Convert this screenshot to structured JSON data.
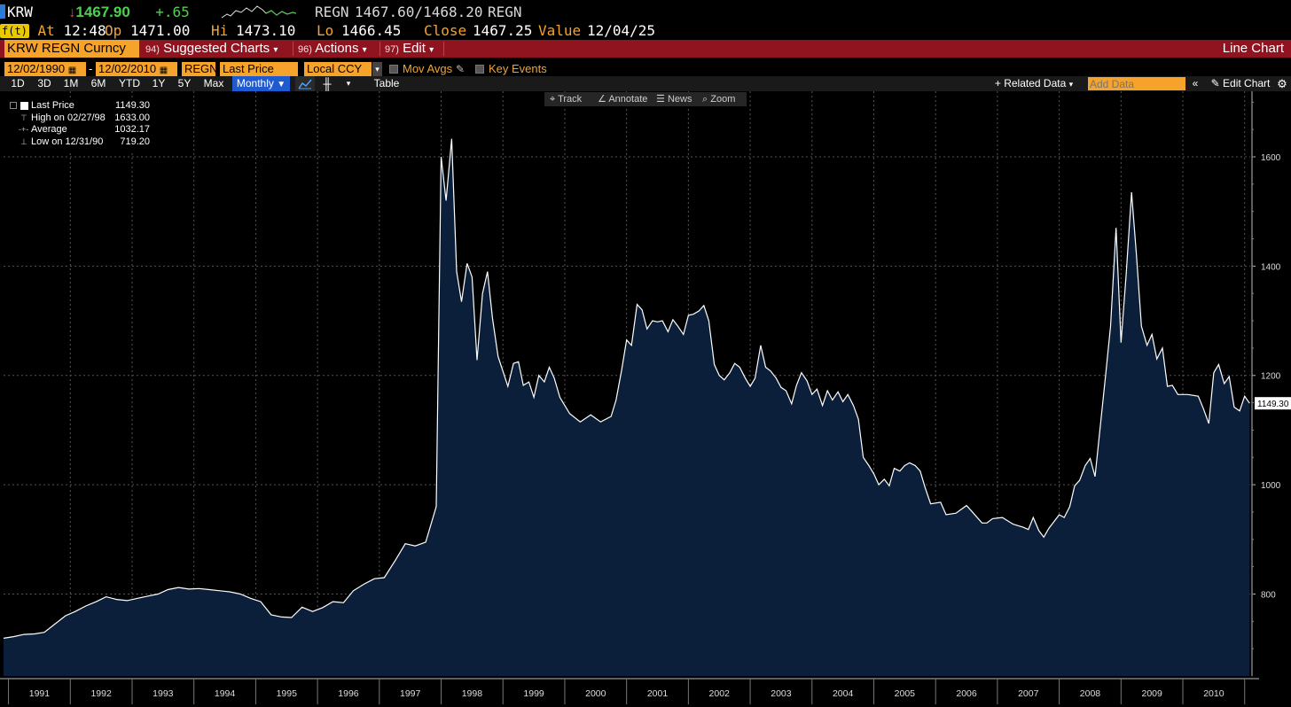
{
  "quote": {
    "ticker": "KRW",
    "price": "1467.90",
    "arrow": "↓",
    "change": "+.65",
    "symbol": "REGN",
    "bid_ask": "1467.60/1468.20",
    "symbol2": "REGN",
    "fkey": "f(t)",
    "at_label": "At",
    "at_time": "12:48",
    "op_label": "Op",
    "op": "1471.00",
    "hi_label": "Hi",
    "hi": "1473.10",
    "lo_label": "Lo",
    "lo": "1466.45",
    "close_label": "Close",
    "close": "1467.25",
    "value_label": "Value",
    "value_date": "12/04/25"
  },
  "menubar": {
    "security": "KRW REGN Curncy",
    "items": [
      {
        "num": "94)",
        "label": "Suggested Charts",
        "caret": "▾"
      },
      {
        "num": "96)",
        "label": "Actions",
        "caret": "▾"
      },
      {
        "num": "97)",
        "label": "Edit",
        "caret": "▾"
      }
    ],
    "right_label": "Line Chart"
  },
  "controls": {
    "start_date": "12/02/1990",
    "dash": "-",
    "end_date": "12/02/2010",
    "source": "REGN",
    "field": "Last Price",
    "currency": "Local CCY",
    "mov_avgs": "Mov Avgs",
    "key_events": "Key Events"
  },
  "periods": {
    "buttons": [
      "1D",
      "3D",
      "1M",
      "6M",
      "YTD",
      "1Y",
      "5Y",
      "Max"
    ],
    "frequency": "Monthly",
    "table": "Table",
    "related_data": "+ Related Data",
    "add_data_placeholder": "Add Data",
    "edit_chart": "Edit Chart"
  },
  "tools": {
    "track": "Track",
    "annotate": "Annotate",
    "news": "News",
    "zoom": "Zoom"
  },
  "legend": [
    {
      "label": "Last Price",
      "value": "1149.30"
    },
    {
      "label": "High on 02/27/98",
      "value": "1633.00"
    },
    {
      "label": "Average",
      "value": "1032.17"
    },
    {
      "label": "Low on 12/31/90",
      "value": "719.20"
    }
  ],
  "colors": {
    "area_fill": "#0b1f3a",
    "line": "#ffffff",
    "accent_orange": "#f6a32c",
    "menu_red": "#8f1420",
    "up_green": "#4ed04e",
    "down_red": "#ff3b3b"
  },
  "chart_data": {
    "type": "area",
    "title": "",
    "xlabel": "",
    "ylabel": "",
    "ylim": [
      650,
      1720
    ],
    "yticks": [
      800,
      1000,
      1200,
      1400,
      1600
    ],
    "x_ticks": [
      "1991",
      "1992",
      "1993",
      "1994",
      "1995",
      "1996",
      "1997",
      "1998",
      "1999",
      "2000",
      "2001",
      "2002",
      "2003",
      "2004",
      "2005",
      "2006",
      "2007",
      "2008",
      "2009",
      "2010"
    ],
    "last_value_label": "1149.30",
    "grid": true,
    "x_start": 1990.92,
    "x_end": 2010.92,
    "series": [
      {
        "name": "Last Price",
        "points": [
          [
            1990.92,
            719
          ],
          [
            1991.08,
            722
          ],
          [
            1991.25,
            726
          ],
          [
            1991.42,
            727
          ],
          [
            1991.58,
            730
          ],
          [
            1991.75,
            745
          ],
          [
            1991.92,
            760
          ],
          [
            1992.08,
            768
          ],
          [
            1992.25,
            778
          ],
          [
            1992.42,
            786
          ],
          [
            1992.58,
            795
          ],
          [
            1992.75,
            790
          ],
          [
            1992.92,
            788
          ],
          [
            1993.08,
            792
          ],
          [
            1993.25,
            796
          ],
          [
            1993.42,
            800
          ],
          [
            1993.58,
            808
          ],
          [
            1993.75,
            812
          ],
          [
            1993.92,
            809
          ],
          [
            1994.08,
            810
          ],
          [
            1994.25,
            808
          ],
          [
            1994.42,
            806
          ],
          [
            1994.58,
            804
          ],
          [
            1994.75,
            800
          ],
          [
            1994.92,
            792
          ],
          [
            1995.08,
            786
          ],
          [
            1995.25,
            762
          ],
          [
            1995.42,
            758
          ],
          [
            1995.58,
            757
          ],
          [
            1995.75,
            776
          ],
          [
            1995.92,
            768
          ],
          [
            1996.08,
            775
          ],
          [
            1996.25,
            786
          ],
          [
            1996.42,
            784
          ],
          [
            1996.58,
            806
          ],
          [
            1996.75,
            818
          ],
          [
            1996.92,
            828
          ],
          [
            1997.08,
            830
          ],
          [
            1997.25,
            860
          ],
          [
            1997.42,
            892
          ],
          [
            1997.58,
            888
          ],
          [
            1997.75,
            895
          ],
          [
            1997.92,
            960
          ],
          [
            1998.0,
            1600
          ],
          [
            1998.08,
            1520
          ],
          [
            1998.17,
            1633
          ],
          [
            1998.25,
            1390
          ],
          [
            1998.33,
            1335
          ],
          [
            1998.42,
            1405
          ],
          [
            1998.5,
            1380
          ],
          [
            1998.58,
            1228
          ],
          [
            1998.67,
            1350
          ],
          [
            1998.75,
            1390
          ],
          [
            1998.83,
            1305
          ],
          [
            1998.92,
            1235
          ],
          [
            1999.08,
            1180
          ],
          [
            1999.17,
            1222
          ],
          [
            1999.25,
            1225
          ],
          [
            1999.33,
            1182
          ],
          [
            1999.42,
            1188
          ],
          [
            1999.5,
            1160
          ],
          [
            1999.58,
            1200
          ],
          [
            1999.67,
            1188
          ],
          [
            1999.75,
            1215
          ],
          [
            1999.83,
            1195
          ],
          [
            1999.92,
            1160
          ],
          [
            2000.08,
            1130
          ],
          [
            2000.25,
            1115
          ],
          [
            2000.42,
            1128
          ],
          [
            2000.58,
            1115
          ],
          [
            2000.75,
            1125
          ],
          [
            2000.83,
            1155
          ],
          [
            2000.92,
            1210
          ],
          [
            2001.0,
            1265
          ],
          [
            2001.08,
            1255
          ],
          [
            2001.17,
            1330
          ],
          [
            2001.25,
            1320
          ],
          [
            2001.33,
            1285
          ],
          [
            2001.42,
            1300
          ],
          [
            2001.5,
            1298
          ],
          [
            2001.58,
            1300
          ],
          [
            2001.67,
            1280
          ],
          [
            2001.75,
            1302
          ],
          [
            2001.83,
            1290
          ],
          [
            2001.92,
            1275
          ],
          [
            2002.0,
            1310
          ],
          [
            2002.08,
            1312
          ],
          [
            2002.17,
            1318
          ],
          [
            2002.25,
            1328
          ],
          [
            2002.33,
            1300
          ],
          [
            2002.42,
            1220
          ],
          [
            2002.5,
            1200
          ],
          [
            2002.58,
            1192
          ],
          [
            2002.67,
            1205
          ],
          [
            2002.75,
            1222
          ],
          [
            2002.83,
            1215
          ],
          [
            2002.92,
            1195
          ],
          [
            2003.0,
            1180
          ],
          [
            2003.08,
            1195
          ],
          [
            2003.17,
            1255
          ],
          [
            2003.25,
            1215
          ],
          [
            2003.33,
            1208
          ],
          [
            2003.42,
            1195
          ],
          [
            2003.5,
            1178
          ],
          [
            2003.58,
            1172
          ],
          [
            2003.67,
            1148
          ],
          [
            2003.75,
            1182
          ],
          [
            2003.83,
            1205
          ],
          [
            2003.92,
            1190
          ],
          [
            2004.0,
            1165
          ],
          [
            2004.08,
            1175
          ],
          [
            2004.17,
            1145
          ],
          [
            2004.25,
            1172
          ],
          [
            2004.33,
            1155
          ],
          [
            2004.42,
            1170
          ],
          [
            2004.5,
            1152
          ],
          [
            2004.58,
            1165
          ],
          [
            2004.67,
            1145
          ],
          [
            2004.75,
            1120
          ],
          [
            2004.83,
            1050
          ],
          [
            2004.92,
            1035
          ],
          [
            2005.0,
            1020
          ],
          [
            2005.08,
            1000
          ],
          [
            2005.17,
            1010
          ],
          [
            2005.25,
            998
          ],
          [
            2005.33,
            1030
          ],
          [
            2005.42,
            1025
          ],
          [
            2005.5,
            1035
          ],
          [
            2005.58,
            1040
          ],
          [
            2005.67,
            1035
          ],
          [
            2005.75,
            1025
          ],
          [
            2005.83,
            995
          ],
          [
            2005.92,
            965
          ],
          [
            2006.08,
            968
          ],
          [
            2006.17,
            945
          ],
          [
            2006.33,
            948
          ],
          [
            2006.5,
            962
          ],
          [
            2006.58,
            952
          ],
          [
            2006.75,
            930
          ],
          [
            2006.83,
            930
          ],
          [
            2006.92,
            938
          ],
          [
            2007.08,
            940
          ],
          [
            2007.25,
            928
          ],
          [
            2007.42,
            922
          ],
          [
            2007.5,
            918
          ],
          [
            2007.58,
            940
          ],
          [
            2007.67,
            916
          ],
          [
            2007.75,
            904
          ],
          [
            2007.83,
            920
          ],
          [
            2008.0,
            945
          ],
          [
            2008.08,
            940
          ],
          [
            2008.17,
            960
          ],
          [
            2008.25,
            998
          ],
          [
            2008.33,
            1008
          ],
          [
            2008.42,
            1035
          ],
          [
            2008.5,
            1048
          ],
          [
            2008.58,
            1015
          ],
          [
            2008.75,
            1200
          ],
          [
            2008.83,
            1290
          ],
          [
            2008.92,
            1470
          ],
          [
            2009.0,
            1260
          ],
          [
            2009.08,
            1380
          ],
          [
            2009.17,
            1535
          ],
          [
            2009.25,
            1420
          ],
          [
            2009.33,
            1290
          ],
          [
            2009.42,
            1255
          ],
          [
            2009.5,
            1275
          ],
          [
            2009.58,
            1230
          ],
          [
            2009.67,
            1250
          ],
          [
            2009.75,
            1180
          ],
          [
            2009.83,
            1182
          ],
          [
            2009.92,
            1165
          ],
          [
            2010.08,
            1165
          ],
          [
            2010.25,
            1162
          ],
          [
            2010.33,
            1140
          ],
          [
            2010.42,
            1112
          ],
          [
            2010.5,
            1205
          ],
          [
            2010.58,
            1220
          ],
          [
            2010.67,
            1185
          ],
          [
            2010.75,
            1198
          ],
          [
            2010.83,
            1142
          ],
          [
            2010.92,
            1135
          ],
          [
            2011.0,
            1162
          ],
          [
            2011.08,
            1149
          ]
        ]
      }
    ]
  }
}
